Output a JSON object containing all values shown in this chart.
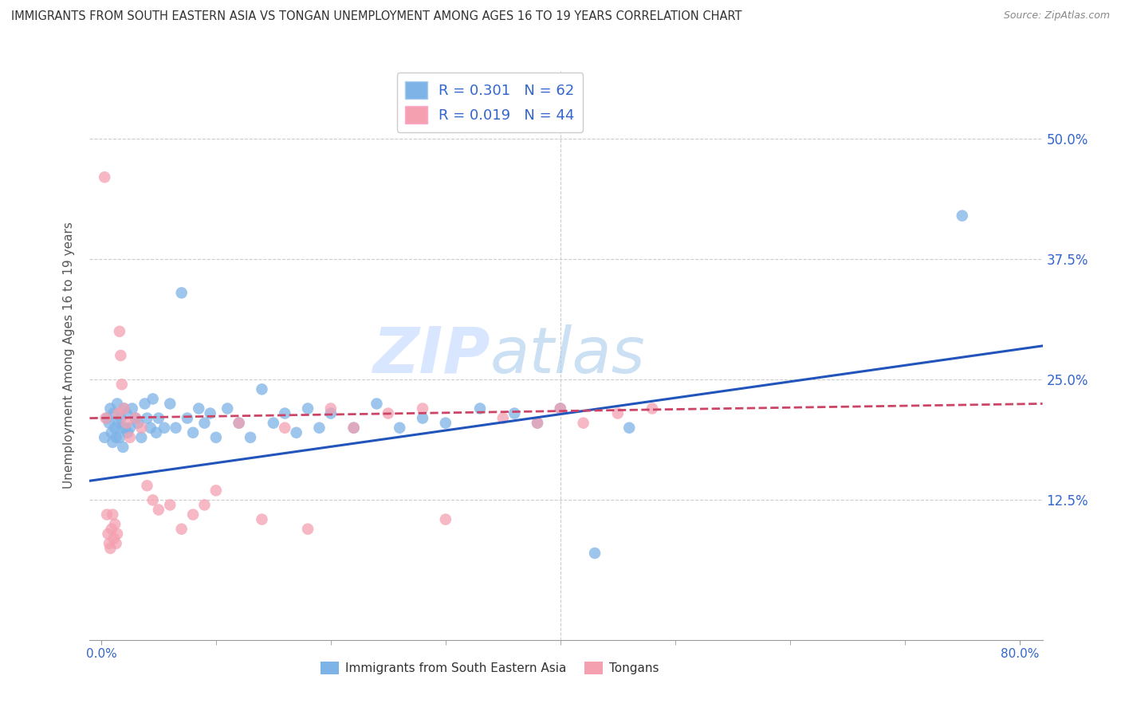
{
  "title": "IMMIGRANTS FROM SOUTH EASTERN ASIA VS TONGAN UNEMPLOYMENT AMONG AGES 16 TO 19 YEARS CORRELATION CHART",
  "source": "Source: ZipAtlas.com",
  "ylabel": "Unemployment Among Ages 16 to 19 years",
  "x_tick_labels_bottom": [
    "0.0%",
    "80.0%"
  ],
  "x_tick_values_bottom": [
    0.0,
    80.0
  ],
  "x_minor_ticks": [
    10.0,
    20.0,
    30.0,
    40.0,
    50.0,
    60.0,
    70.0
  ],
  "y_tick_labels": [
    "12.5%",
    "25.0%",
    "37.5%",
    "50.0%"
  ],
  "y_tick_values": [
    12.5,
    25.0,
    37.5,
    50.0
  ],
  "xlim": [
    -1.0,
    82.0
  ],
  "ylim": [
    -2.0,
    57.0
  ],
  "legend_label1": "Immigrants from South Eastern Asia",
  "legend_label2": "Tongans",
  "R1": 0.301,
  "N1": 62,
  "R2": 0.019,
  "N2": 44,
  "color_blue": "#7EB3E8",
  "color_pink": "#F4A0B0",
  "trend_color_blue": "#2255BB",
  "trend_color_pink": "#CC4466",
  "watermark_zip": "ZIP",
  "watermark_atlas": "atlas",
  "background_color": "#FFFFFF",
  "grid_color": "#CCCCCC",
  "blue_trend_start_y": 14.5,
  "blue_trend_end_y": 28.5,
  "pink_trend_start_y": 21.0,
  "pink_trend_end_y": 22.5,
  "blue_scatter_x": [
    0.3,
    0.5,
    0.7,
    0.8,
    0.9,
    1.0,
    1.1,
    1.2,
    1.3,
    1.4,
    1.5,
    1.6,
    1.7,
    1.8,
    1.9,
    2.0,
    2.1,
    2.2,
    2.3,
    2.5,
    2.7,
    3.0,
    3.2,
    3.5,
    3.8,
    4.0,
    4.3,
    4.5,
    4.8,
    5.0,
    5.5,
    6.0,
    6.5,
    7.0,
    7.5,
    8.0,
    8.5,
    9.0,
    9.5,
    10.0,
    11.0,
    12.0,
    13.0,
    14.0,
    15.0,
    16.0,
    17.0,
    18.0,
    19.0,
    20.0,
    22.0,
    24.0,
    26.0,
    28.0,
    30.0,
    33.0,
    36.0,
    38.0,
    40.0,
    43.0,
    46.0,
    75.0
  ],
  "blue_scatter_y": [
    19.0,
    21.0,
    20.5,
    22.0,
    19.5,
    18.5,
    21.5,
    20.0,
    19.0,
    22.5,
    20.5,
    19.0,
    21.0,
    20.0,
    18.0,
    22.0,
    20.0,
    21.5,
    19.5,
    20.0,
    22.0,
    21.0,
    20.5,
    19.0,
    22.5,
    21.0,
    20.0,
    23.0,
    19.5,
    21.0,
    20.0,
    22.5,
    20.0,
    34.0,
    21.0,
    19.5,
    22.0,
    20.5,
    21.5,
    19.0,
    22.0,
    20.5,
    19.0,
    24.0,
    20.5,
    21.5,
    19.5,
    22.0,
    20.0,
    21.5,
    20.0,
    22.5,
    20.0,
    21.0,
    20.5,
    22.0,
    21.5,
    20.5,
    22.0,
    7.0,
    20.0,
    42.0
  ],
  "pink_scatter_x": [
    0.3,
    0.4,
    0.5,
    0.6,
    0.7,
    0.8,
    0.9,
    1.0,
    1.1,
    1.2,
    1.3,
    1.4,
    1.5,
    1.6,
    1.7,
    1.8,
    2.0,
    2.2,
    2.5,
    3.0,
    3.5,
    4.0,
    4.5,
    5.0,
    6.0,
    7.0,
    8.0,
    9.0,
    10.0,
    12.0,
    14.0,
    16.0,
    18.0,
    20.0,
    22.0,
    25.0,
    28.0,
    30.0,
    35.0,
    38.0,
    40.0,
    42.0,
    45.0,
    48.0
  ],
  "pink_scatter_y": [
    46.0,
    21.0,
    11.0,
    9.0,
    8.0,
    7.5,
    9.5,
    11.0,
    8.5,
    10.0,
    8.0,
    9.0,
    21.5,
    30.0,
    27.5,
    24.5,
    22.0,
    20.5,
    19.0,
    21.0,
    20.0,
    14.0,
    12.5,
    11.5,
    12.0,
    9.5,
    11.0,
    12.0,
    13.5,
    20.5,
    10.5,
    20.0,
    9.5,
    22.0,
    20.0,
    21.5,
    22.0,
    10.5,
    21.0,
    20.5,
    22.0,
    20.5,
    21.5,
    22.0
  ]
}
